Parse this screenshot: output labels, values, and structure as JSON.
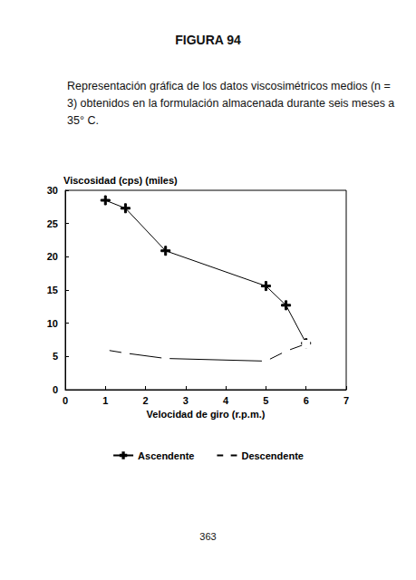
{
  "chart_data": {
    "type": "line",
    "title": "FIGURA 94",
    "subtitle": "Representación gráfica de los datos viscosimétricos medios (n = 3) obtenidos en la formulación almacenada durante seis meses a 35° C.",
    "annotations": [
      "363"
    ],
    "x_label": "Velocidad de giro (r.p.m.)",
    "y_label": "Viscosidad (cps) (miles)",
    "x": [
      1,
      1.5,
      2.5,
      5,
      5.5,
      6
    ],
    "series": [
      {
        "name": "Ascendente",
        "color": "#000000",
        "marker": "plus",
        "values": [
          28.5,
          27.3,
          20.9,
          15.6,
          12.7,
          7.0
        ]
      },
      {
        "name": "Descendente",
        "color": "#000000",
        "marker": "square",
        "values": [
          6.0,
          5.5,
          4.7,
          4.3,
          5.8,
          6.9
        ]
      }
    ],
    "xlim": [
      0,
      7
    ],
    "xticks": [
      0,
      1,
      2,
      3,
      4,
      5,
      6,
      7
    ],
    "ylim": [
      0,
      30
    ],
    "yticks": [
      0,
      5,
      10,
      15,
      20,
      25,
      30
    ],
    "grid": false,
    "legend": "bottom"
  }
}
